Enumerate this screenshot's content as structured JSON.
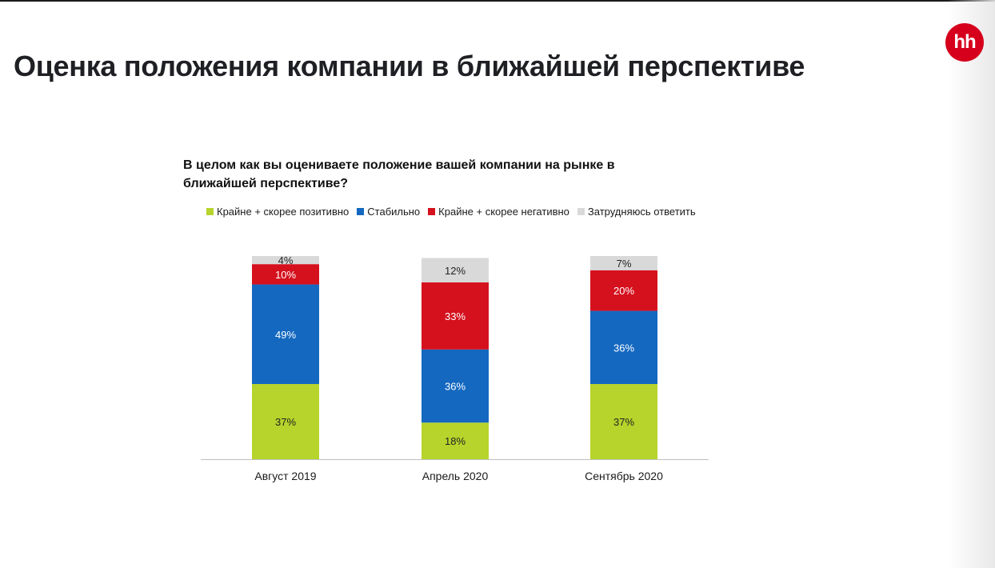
{
  "page": {
    "title": "Оценка положения компании в ближайшей перспективе",
    "logo_text": "hh",
    "logo_color": "#d6001c"
  },
  "chart_data": {
    "type": "bar",
    "stacked": true,
    "title": "В целом как вы оцениваете положение вашей компании на рынке в ближайшей перспективе?",
    "categories": [
      "Август 2019",
      "Апрель 2020",
      "Сентябрь 2020"
    ],
    "series": [
      {
        "name": "Крайне + скорее позитивно",
        "color": "#b6d42b",
        "values": [
          37,
          18,
          37
        ]
      },
      {
        "name": "Стабильно",
        "color": "#1468c0",
        "values": [
          49,
          36,
          36
        ]
      },
      {
        "name": "Крайне + скорее негативно",
        "color": "#d5111e",
        "values": [
          10,
          33,
          20
        ]
      },
      {
        "name": "Затрудняюсь ответить",
        "color": "#d9d9d9",
        "values": [
          4,
          12,
          7
        ]
      }
    ],
    "data_labels": [
      [
        "37%",
        "18%",
        "37%"
      ],
      [
        "49%",
        "36%",
        "36%"
      ],
      [
        "10%",
        "33%",
        "20%"
      ],
      [
        "4%",
        "12%",
        "7%"
      ]
    ],
    "label_colors": [
      "#222222",
      "#ffffff",
      "#ffffff",
      "#222222"
    ],
    "ylim": [
      0,
      100
    ],
    "legend_position": "top",
    "grid": false
  }
}
